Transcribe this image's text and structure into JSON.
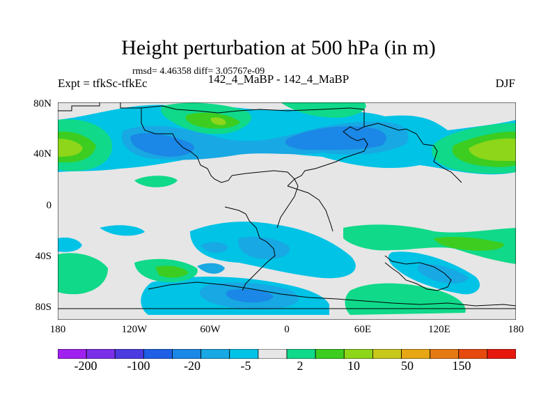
{
  "title": "Height perturbation at 500 hPa (in m)",
  "stats": "rmsd= 4.46358 diff= 3.05767e-09",
  "experiment": "Expt = tfkSc-tfkEc",
  "center_label": "142_4_MaBP - 142_4_MaBP",
  "season": "DJF",
  "lat_labels": [
    "80N",
    "40N",
    "0",
    "40S",
    "80S"
  ],
  "lon_labels": [
    "180",
    "120W",
    "60W",
    "0",
    "60E",
    "120E",
    "180"
  ],
  "colorbar": {
    "colors": [
      "#a020f0",
      "#7a2fe8",
      "#4b3be0",
      "#1e5fe6",
      "#1b87e6",
      "#18a8e3",
      "#00c3e6",
      "#e6e6e6",
      "#10d98a",
      "#3ccd20",
      "#8ed61a",
      "#c7c81a",
      "#e6a712",
      "#e67a12",
      "#e64a0e",
      "#e6180e"
    ],
    "labels": [
      "-200",
      "-100",
      "-20",
      "-5",
      "2",
      "10",
      "50",
      "150"
    ]
  },
  "colors": {
    "background": "#ffffff",
    "neutral": "#e6e6e6",
    "coast": "#000000"
  }
}
